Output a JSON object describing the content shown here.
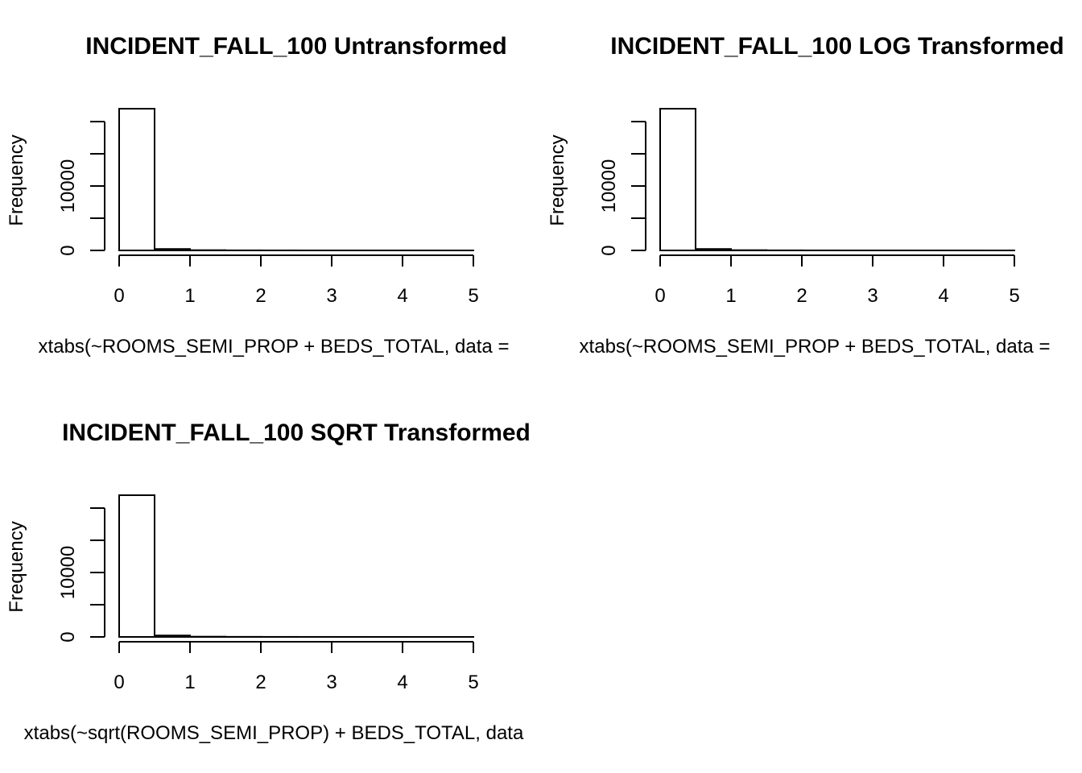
{
  "chart_data": [
    {
      "type": "bar",
      "title": "INCIDENT_FALL_100 Untransformed",
      "xlabel": "xtabs(~ROOMS_SEMI_PROP + BEDS_TOTAL, data =",
      "ylabel": "Frequency",
      "bins": [
        [
          0,
          0.5
        ],
        [
          0.5,
          1
        ],
        [
          1,
          1.5
        ],
        [
          1.5,
          2
        ],
        [
          2,
          2.5
        ],
        [
          2.5,
          3
        ],
        [
          3,
          3.5
        ],
        [
          3.5,
          4
        ],
        [
          4,
          4.5
        ],
        [
          4.5,
          5
        ]
      ],
      "values": [
        22000,
        220,
        40,
        15,
        8,
        5,
        4,
        3,
        2,
        1
      ],
      "xticks": [
        "0",
        "1",
        "2",
        "3",
        "4",
        "5"
      ],
      "yticks": [
        "0",
        "10000"
      ],
      "xlim": [
        0,
        5
      ],
      "ylim": [
        0,
        20000
      ]
    },
    {
      "type": "bar",
      "title": "INCIDENT_FALL_100 LOG Transformed",
      "xlabel": "xtabs(~ROOMS_SEMI_PROP + BEDS_TOTAL, data =",
      "ylabel": "Frequency",
      "bins": [
        [
          0,
          0.5
        ],
        [
          0.5,
          1
        ],
        [
          1,
          1.5
        ],
        [
          1.5,
          2
        ],
        [
          2,
          2.5
        ],
        [
          2.5,
          3
        ],
        [
          3,
          3.5
        ],
        [
          3.5,
          4
        ],
        [
          4,
          4.5
        ],
        [
          4.5,
          5
        ]
      ],
      "values": [
        22000,
        220,
        40,
        15,
        8,
        5,
        4,
        3,
        2,
        1
      ],
      "xticks": [
        "0",
        "1",
        "2",
        "3",
        "4",
        "5"
      ],
      "yticks": [
        "0",
        "10000"
      ],
      "xlim": [
        0,
        5
      ],
      "ylim": [
        0,
        20000
      ]
    },
    {
      "type": "bar",
      "title": "INCIDENT_FALL_100 SQRT Transformed",
      "xlabel": "xtabs(~sqrt(ROOMS_SEMI_PROP) + BEDS_TOTAL, data",
      "ylabel": "Frequency",
      "bins": [
        [
          0,
          0.5
        ],
        [
          0.5,
          1
        ],
        [
          1,
          1.5
        ],
        [
          1.5,
          2
        ],
        [
          2,
          2.5
        ],
        [
          2.5,
          3
        ],
        [
          3,
          3.5
        ],
        [
          3.5,
          4
        ],
        [
          4,
          4.5
        ],
        [
          4.5,
          5
        ]
      ],
      "values": [
        22000,
        220,
        40,
        15,
        8,
        5,
        4,
        3,
        2,
        1
      ],
      "xticks": [
        "0",
        "1",
        "2",
        "3",
        "4",
        "5"
      ],
      "yticks": [
        "0",
        "10000"
      ],
      "xlim": [
        0,
        5
      ],
      "ylim": [
        0,
        20000
      ]
    }
  ]
}
